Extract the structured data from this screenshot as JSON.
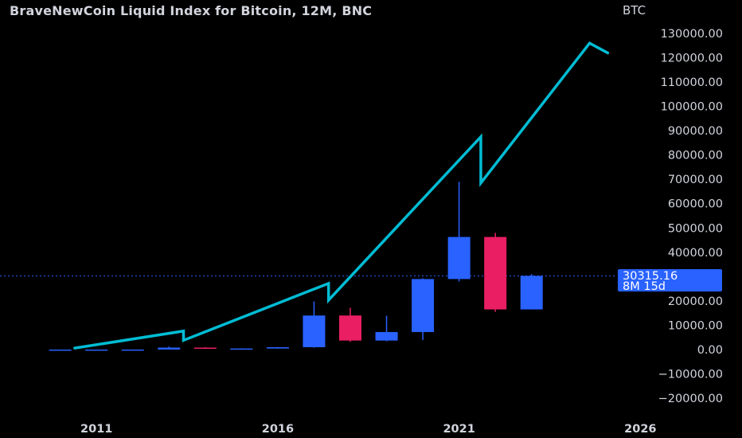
{
  "title": "BraveNewCoin Liquid Index for Bitcoin, 12M, BNC",
  "currency": "BTC",
  "last_price": "30315.16",
  "countdown": "8M 15d",
  "colors": {
    "background": "#000000",
    "up": "#2962ff",
    "down": "#e91e63",
    "drawing": "#00bcd4",
    "text": "#d1d4dc",
    "price_line": "#2962ff"
  },
  "chart_data": {
    "type": "candlestick",
    "title": "BraveNewCoin Liquid Index for Bitcoin, 12M, BNC",
    "xlabel": "",
    "ylabel": "",
    "ylim": [
      -20000,
      130000
    ],
    "xlim": [
      2010.2,
      2026.8
    ],
    "y_ticks": [
      "130000.00",
      "120000.00",
      "110000.00",
      "100000.00",
      "90000.00",
      "80000.00",
      "70000.00",
      "60000.00",
      "50000.00",
      "40000.00",
      "30000.00",
      "20000.00",
      "10000.00",
      "0.00",
      "−10000.00",
      "−20000.00"
    ],
    "y_tick_values": [
      130000,
      120000,
      110000,
      100000,
      90000,
      80000,
      70000,
      60000,
      50000,
      40000,
      30000,
      20000,
      10000,
      0,
      -10000,
      -20000
    ],
    "x_ticks": [
      "2011",
      "2016",
      "2021",
      "2026"
    ],
    "x_tick_values": [
      2011,
      2016,
      2021,
      2026
    ],
    "grid": false,
    "current_price": 30315.16,
    "candles": [
      {
        "year": 2010,
        "open": 0,
        "high": 0,
        "low": 0,
        "close": 0
      },
      {
        "year": 2011,
        "open": 0,
        "high": 30,
        "low": 0,
        "close": 5
      },
      {
        "year": 2012,
        "open": 5,
        "high": 15,
        "low": 4,
        "close": 13
      },
      {
        "year": 2013,
        "open": 13,
        "high": 1200,
        "low": 13,
        "close": 800
      },
      {
        "year": 2014,
        "open": 800,
        "high": 1000,
        "low": 300,
        "close": 320
      },
      {
        "year": 2015,
        "open": 320,
        "high": 500,
        "low": 180,
        "close": 430
      },
      {
        "year": 2016,
        "open": 430,
        "high": 1000,
        "low": 360,
        "close": 960
      },
      {
        "year": 2017,
        "open": 960,
        "high": 19800,
        "low": 780,
        "close": 14000
      },
      {
        "year": 2018,
        "open": 14000,
        "high": 17200,
        "low": 3200,
        "close": 3700
      },
      {
        "year": 2019,
        "open": 3700,
        "high": 13900,
        "low": 3400,
        "close": 7200
      },
      {
        "year": 2020,
        "open": 7200,
        "high": 29300,
        "low": 3900,
        "close": 29000
      },
      {
        "year": 2021,
        "open": 29000,
        "high": 69000,
        "low": 28000,
        "close": 46300
      },
      {
        "year": 2022,
        "open": 46300,
        "high": 48000,
        "low": 15500,
        "close": 16500
      },
      {
        "year": 2023,
        "open": 16500,
        "high": 31000,
        "low": 16500,
        "close": 30315.16
      }
    ],
    "drawing_path": [
      {
        "year": 2010.9,
        "value": 600
      },
      {
        "year": 2013.9,
        "value": 7600
      },
      {
        "year": 2013.9,
        "value": 3800
      },
      {
        "year": 2017.9,
        "value": 27200
      },
      {
        "year": 2017.9,
        "value": 20300
      },
      {
        "year": 2022.1,
        "value": 87500
      },
      {
        "year": 2022.1,
        "value": 68500
      },
      {
        "year": 2025.1,
        "value": 126000
      },
      {
        "year": 2025.6,
        "value": 122000
      }
    ]
  }
}
